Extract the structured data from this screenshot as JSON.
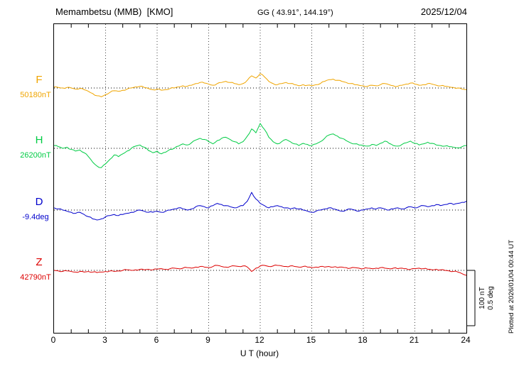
{
  "header": {
    "title": "Memambetsu (MMB)  [KMO]",
    "gg": "GG ( 43.91°, 144.19°)",
    "date": "2025/12/04"
  },
  "axis": {
    "xlabel": "U T (hour)"
  },
  "scale": {
    "line1": "100 nT",
    "line2": "0.5 deg"
  },
  "footer": {
    "plotted_at": "Plotted at 2026/01/04 00:44 UT"
  },
  "chart_data": {
    "type": "line",
    "title": "Memambetsu (MMB) [KMO] magnetogram",
    "xlabel": "U T (hour)",
    "xlim": [
      0,
      24
    ],
    "x_ticks": [
      0,
      3,
      6,
      9,
      12,
      15,
      18,
      21,
      24
    ],
    "sampling_hours": 0.25,
    "grid": "dotted vertical lines every 3 hours; dotted horizontal baseline per trace",
    "legend_position": "left margin (trace letters)",
    "scale_reference": {
      "nT_per_bar": 100,
      "deg_per_bar": 0.5
    },
    "series": [
      {
        "name": "F",
        "color": "#f0a500",
        "unit": "nT",
        "baseline_label": "50180nT",
        "baseline_value": 50180,
        "values": [
          2,
          1,
          0,
          1,
          0,
          -2,
          -1,
          -3,
          -6,
          -10,
          -14,
          -16,
          -12,
          -8,
          -5,
          -6,
          -4,
          -2,
          0,
          2,
          3,
          1,
          -1,
          -3,
          -2,
          -4,
          -3,
          -1,
          0,
          2,
          4,
          3,
          5,
          8,
          10,
          9,
          7,
          5,
          8,
          10,
          12,
          10,
          8,
          6,
          8,
          14,
          22,
          18,
          26,
          20,
          12,
          8,
          6,
          8,
          10,
          8,
          6,
          4,
          6,
          5,
          4,
          6,
          8,
          12,
          15,
          16,
          14,
          12,
          10,
          8,
          6,
          5,
          4,
          3,
          5,
          4,
          6,
          8,
          6,
          4,
          3,
          5,
          7,
          9,
          7,
          5,
          6,
          8,
          7,
          5,
          4,
          3,
          2,
          1,
          0,
          -2,
          -3
        ]
      },
      {
        "name": "H",
        "color": "#00cc44",
        "unit": "nT",
        "baseline_label": "26200nT",
        "baseline_value": 26200,
        "values": [
          5,
          3,
          0,
          2,
          -2,
          -5,
          -3,
          -8,
          -15,
          -25,
          -32,
          -35,
          -28,
          -20,
          -12,
          -15,
          -10,
          -5,
          0,
          4,
          6,
          2,
          -4,
          -8,
          -5,
          -10,
          -7,
          -2,
          0,
          4,
          8,
          6,
          10,
          15,
          18,
          16,
          12,
          8,
          14,
          18,
          20,
          16,
          12,
          8,
          12,
          22,
          35,
          28,
          45,
          34,
          20,
          12,
          8,
          12,
          16,
          12,
          8,
          5,
          9,
          7,
          5,
          8,
          12,
          18,
          24,
          26,
          22,
          18,
          14,
          10,
          8,
          6,
          5,
          4,
          7,
          5,
          9,
          13,
          9,
          5,
          4,
          7,
          10,
          13,
          9,
          6,
          8,
          11,
          9,
          6,
          5,
          4,
          3,
          2,
          1,
          3,
          5
        ]
      },
      {
        "name": "D",
        "color": "#0000cc",
        "unit": "deg",
        "baseline_label": "-9.4deg",
        "baseline_value": -9.4,
        "values": [
          0.02,
          0.01,
          0.0,
          -0.01,
          -0.02,
          -0.03,
          -0.02,
          -0.04,
          -0.06,
          -0.08,
          -0.09,
          -0.08,
          -0.06,
          -0.05,
          -0.04,
          -0.05,
          -0.04,
          -0.03,
          -0.02,
          -0.01,
          0.0,
          -0.01,
          -0.02,
          -0.02,
          -0.01,
          -0.02,
          -0.01,
          0.0,
          0.01,
          0.02,
          0.01,
          0.0,
          0.01,
          0.03,
          0.04,
          0.03,
          0.02,
          0.04,
          0.06,
          0.05,
          0.04,
          0.03,
          0.02,
          0.03,
          0.04,
          0.08,
          0.16,
          0.1,
          0.06,
          0.04,
          0.02,
          0.03,
          0.04,
          0.03,
          0.02,
          0.01,
          0.02,
          0.01,
          0.0,
          -0.01,
          -0.02,
          -0.01,
          0.0,
          0.01,
          0.02,
          0.01,
          0.0,
          -0.01,
          0.0,
          0.01,
          0.0,
          -0.01,
          0.0,
          0.01,
          0.02,
          0.01,
          0.02,
          0.01,
          0.0,
          0.01,
          0.02,
          0.01,
          0.02,
          0.03,
          0.02,
          0.03,
          0.04,
          0.03,
          0.04,
          0.05,
          0.04,
          0.05,
          0.06,
          0.05,
          0.06,
          0.07,
          0.08
        ]
      },
      {
        "name": "Z",
        "color": "#dd0000",
        "unit": "nT",
        "baseline_label": "42790nT",
        "baseline_value": 42790,
        "values": [
          0,
          -1,
          -2,
          -1,
          -2,
          -3,
          -2,
          -3,
          -2,
          -3,
          -4,
          -3,
          -2,
          -1,
          -2,
          -1,
          0,
          1,
          0,
          1,
          2,
          1,
          2,
          1,
          2,
          3,
          2,
          3,
          4,
          3,
          4,
          5,
          4,
          6,
          7,
          6,
          5,
          7,
          9,
          7,
          6,
          7,
          8,
          7,
          8,
          6,
          -2,
          4,
          8,
          9,
          7,
          8,
          9,
          8,
          7,
          8,
          7,
          6,
          7,
          6,
          5,
          6,
          7,
          6,
          7,
          6,
          5,
          6,
          5,
          4,
          5,
          4,
          3,
          4,
          3,
          4,
          5,
          4,
          3,
          4,
          3,
          4,
          3,
          2,
          3,
          4,
          3,
          2,
          1,
          2,
          1,
          0,
          -1,
          -2,
          -3,
          -6,
          -9
        ]
      }
    ]
  }
}
